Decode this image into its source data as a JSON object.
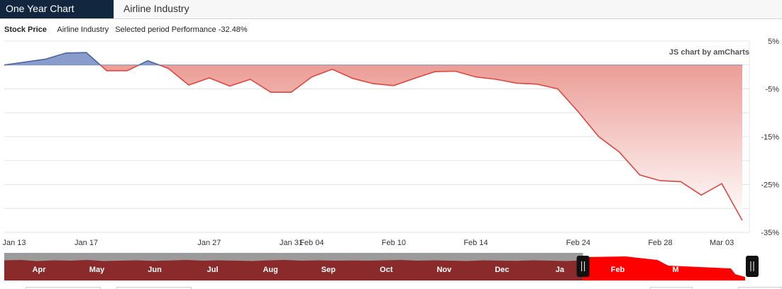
{
  "tabs": [
    {
      "label": "One Year Chart",
      "active": true
    },
    {
      "label": "Airline Industry",
      "active": false
    }
  ],
  "header": {
    "series_label": "Stock Price",
    "industry_label": "Airline Industry",
    "performance_label": "Selected period Performance",
    "performance_value": "-32.48%"
  },
  "credit": "JS chart by amCharts",
  "colors": {
    "positive_fill": "#8a9cc9",
    "positive_line": "#4a63a8",
    "negative_line": "#e0473e",
    "negative_fill_top": "#ea958e",
    "scrollbar_area": "#8b2a2a",
    "scrollbar_selected": "#ff0000",
    "scrollbar_bg": "#9b9b9b"
  },
  "chart_data": {
    "type": "area",
    "title": "",
    "xlabel": "",
    "ylabel": "",
    "ylim": [
      -35,
      5
    ],
    "y_ticks": [
      5,
      -5,
      -15,
      -25,
      -35
    ],
    "y_tick_labels": [
      "5%",
      "-5%",
      "-15%",
      "-25%",
      "-35%"
    ],
    "x_ticks": [
      "Jan 13",
      "Jan 17",
      "Jan 27",
      "Jan 31",
      "Feb 04",
      "Feb 10",
      "Feb 14",
      "Feb 24",
      "Feb 28",
      "Mar 03"
    ],
    "x_tick_positions": [
      0,
      4,
      10,
      14,
      15,
      19,
      23,
      28,
      32,
      35
    ],
    "x": [
      0,
      2,
      3,
      4,
      5,
      6,
      7,
      8,
      9,
      10,
      11,
      12,
      13,
      14,
      15,
      16,
      17,
      18,
      19,
      20,
      21,
      22,
      23,
      24,
      25,
      26,
      27,
      28,
      29,
      30,
      31,
      32,
      33,
      34,
      35,
      36
    ],
    "series": [
      {
        "values": [
          0,
          1.2,
          2.5,
          2.6,
          -1.2,
          -1.2,
          0.9,
          -0.7,
          -4.2,
          -2.7,
          -4.4,
          -3.0,
          -5.7,
          -5.7,
          -2.5,
          -0.9,
          -2.8,
          -3.9,
          -4.3,
          -2.8,
          -1.4,
          -1.3,
          -2.5,
          -3.0,
          -3.8,
          -4.0,
          -5.0,
          -9.8,
          -15.0,
          -18.2,
          -23.0,
          -24.2,
          -24.4,
          -27.2,
          -24.8,
          -32.5
        ]
      }
    ],
    "scrollbar_months": [
      "Apr",
      "May",
      "Jun",
      "Jul",
      "Aug",
      "Sep",
      "Oct",
      "Nov",
      "Dec",
      "Ja",
      "Feb",
      "M"
    ],
    "scrollbar_month_positions": [
      3,
      4,
      5,
      6,
      7,
      8,
      9,
      10,
      11,
      12,
      13,
      14
    ],
    "scrollbar_selection": [
      12.4,
      15.2
    ],
    "legend": "none"
  }
}
